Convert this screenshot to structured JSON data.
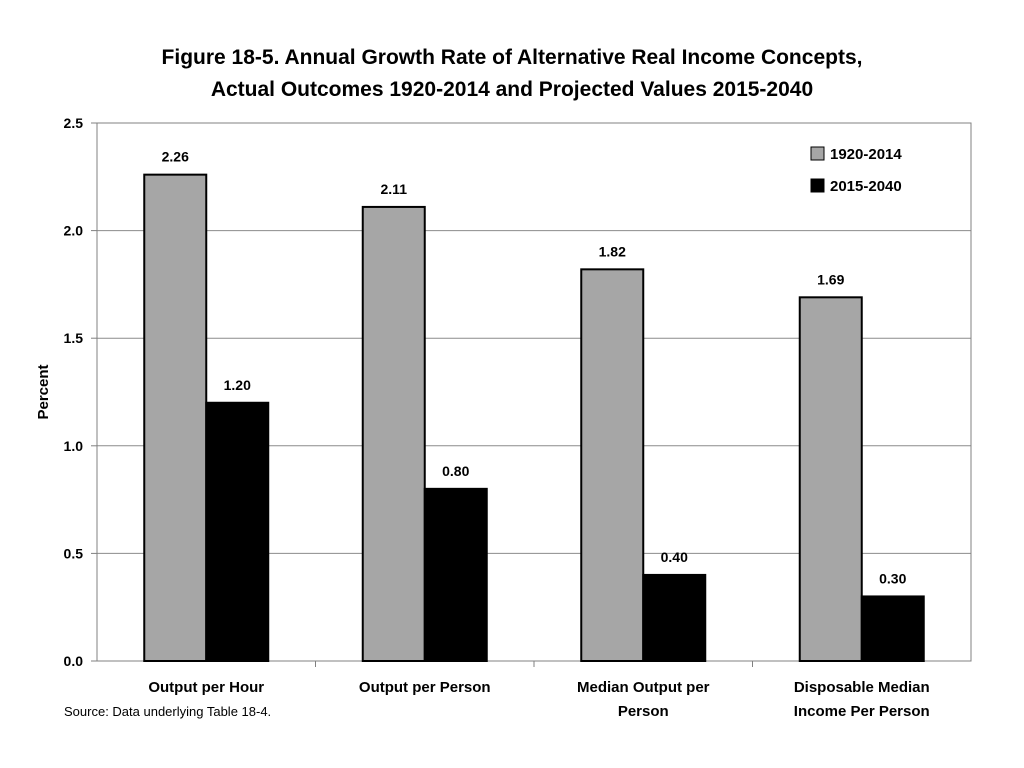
{
  "chart_data": {
    "type": "bar",
    "title_lines": [
      "Figure 18-5.  Annual Growth Rate of Alternative Real Income Concepts,",
      "Actual Outcomes 1920-2014 and Projected Values 2015-2040"
    ],
    "ylabel": "Percent",
    "xlabel": "",
    "ylim": [
      0,
      2.5
    ],
    "yticks": [
      "0.0",
      "0.5",
      "1.0",
      "1.5",
      "2.0",
      "2.5"
    ],
    "ytick_values": [
      0,
      0.5,
      1.0,
      1.5,
      2.0,
      2.5
    ],
    "categories": [
      [
        "Output per Hour"
      ],
      [
        "Output per Person"
      ],
      [
        "Median Output per",
        "Person"
      ],
      [
        "Disposable Median",
        "Income Per Person"
      ]
    ],
    "series": [
      {
        "name": "1920-2014",
        "color": "#a6a6a6",
        "values": [
          2.26,
          2.11,
          1.82,
          1.69
        ],
        "labels": [
          "2.26",
          "2.11",
          "1.82",
          "1.69"
        ]
      },
      {
        "name": "2015-2040",
        "color": "#000000",
        "values": [
          1.2,
          0.8,
          0.4,
          0.3
        ],
        "labels": [
          "1.20",
          "0.80",
          "0.40",
          "0.30"
        ]
      }
    ],
    "grid": true,
    "legend_position": "top-right"
  },
  "source_note": "Source: Data underlying Table 18-4."
}
